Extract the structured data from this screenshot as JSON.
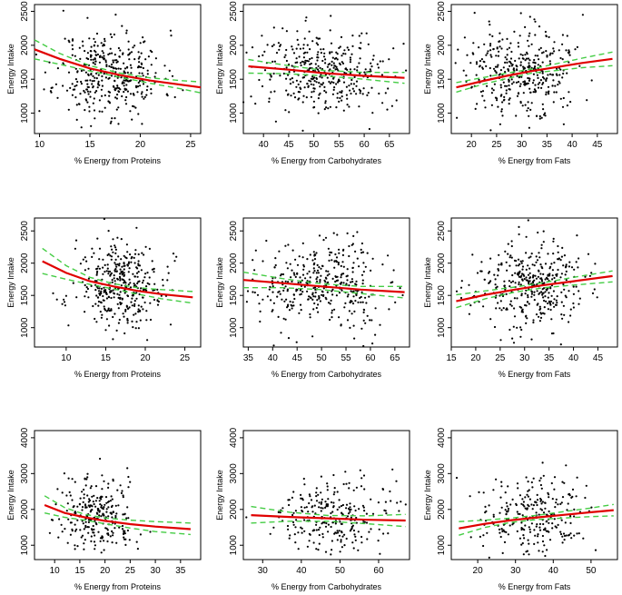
{
  "chart_data": [
    {
      "type": "scatter",
      "xlabel": "% Energy from Proteins",
      "ylabel": "Energy Intake",
      "xlim": [
        9.5,
        26
      ],
      "ylim": [
        700,
        2600
      ],
      "xticks": [
        10,
        15,
        20,
        25
      ],
      "yticks": [
        1000,
        1500,
        2000,
        2500
      ],
      "cloud": {
        "cx": 17,
        "sx": 2.6,
        "cy": 1580,
        "sy": 320,
        "n": 380,
        "seed": 11
      },
      "series": [
        {
          "type": "fit",
          "color": "#e00000",
          "x": [
            9.5,
            12,
            15,
            18,
            21,
            24,
            26
          ],
          "y": [
            1940,
            1800,
            1660,
            1560,
            1480,
            1420,
            1380
          ]
        },
        {
          "type": "ci",
          "color": "#44cc44",
          "x": [
            9.5,
            12,
            15,
            18,
            21,
            24,
            26
          ],
          "y": [
            2080,
            1880,
            1700,
            1590,
            1520,
            1480,
            1460
          ]
        },
        {
          "type": "ci",
          "color": "#44cc44",
          "x": [
            9.5,
            12,
            15,
            18,
            21,
            24,
            26
          ],
          "y": [
            1800,
            1720,
            1620,
            1530,
            1440,
            1360,
            1300
          ]
        }
      ]
    },
    {
      "type": "scatter",
      "xlabel": "% Energy from Carbohydrates",
      "ylabel": "Energy Intake",
      "xlim": [
        36,
        69
      ],
      "ylim": [
        700,
        2600
      ],
      "xticks": [
        40,
        45,
        50,
        55,
        60,
        65
      ],
      "yticks": [
        1000,
        1500,
        2000,
        2500
      ],
      "cloud": {
        "cx": 52,
        "sx": 6.5,
        "cy": 1580,
        "sy": 320,
        "n": 380,
        "seed": 12
      },
      "series": [
        {
          "type": "fit",
          "color": "#e00000",
          "x": [
            37,
            45,
            52,
            60,
            68
          ],
          "y": [
            1690,
            1640,
            1590,
            1550,
            1520
          ]
        },
        {
          "type": "ci",
          "color": "#44cc44",
          "x": [
            37,
            45,
            52,
            60,
            68
          ],
          "y": [
            1790,
            1700,
            1630,
            1600,
            1600
          ]
        },
        {
          "type": "ci",
          "color": "#44cc44",
          "x": [
            37,
            45,
            52,
            60,
            68
          ],
          "y": [
            1590,
            1580,
            1550,
            1500,
            1440
          ]
        }
      ]
    },
    {
      "type": "scatter",
      "xlabel": "% Energy from Fats",
      "ylabel": "Energy Intake",
      "xlim": [
        16,
        49
      ],
      "ylim": [
        700,
        2600
      ],
      "xticks": [
        20,
        25,
        30,
        35,
        40,
        45
      ],
      "yticks": [
        1000,
        1500,
        2000,
        2500
      ],
      "cloud": {
        "cx": 30,
        "sx": 5.5,
        "cy": 1600,
        "sy": 320,
        "n": 380,
        "seed": 13
      },
      "series": [
        {
          "type": "fit",
          "color": "#e00000",
          "x": [
            17,
            22,
            27,
            32,
            37,
            42,
            48
          ],
          "y": [
            1380,
            1470,
            1550,
            1620,
            1680,
            1740,
            1800
          ]
        },
        {
          "type": "ci",
          "color": "#44cc44",
          "x": [
            17,
            22,
            27,
            32,
            37,
            42,
            48
          ],
          "y": [
            1450,
            1520,
            1590,
            1650,
            1730,
            1810,
            1900
          ]
        },
        {
          "type": "ci",
          "color": "#44cc44",
          "x": [
            17,
            22,
            27,
            32,
            37,
            42,
            48
          ],
          "y": [
            1310,
            1420,
            1510,
            1590,
            1630,
            1670,
            1700
          ]
        }
      ]
    },
    {
      "type": "scatter",
      "xlabel": "% Energy from Proteins",
      "ylabel": "Energy Intake",
      "xlim": [
        6,
        27
      ],
      "ylim": [
        700,
        2700
      ],
      "xticks": [
        10,
        15,
        20,
        25
      ],
      "yticks": [
        1000,
        1500,
        2000,
        2500
      ],
      "cloud": {
        "cx": 17,
        "sx": 2.8,
        "cy": 1650,
        "sy": 330,
        "n": 380,
        "seed": 21
      },
      "series": [
        {
          "type": "fit",
          "color": "#e00000",
          "x": [
            7,
            10,
            13,
            16,
            19,
            22,
            26
          ],
          "y": [
            2030,
            1850,
            1720,
            1640,
            1570,
            1520,
            1470
          ]
        },
        {
          "type": "ci",
          "color": "#44cc44",
          "x": [
            7,
            10,
            13,
            16,
            19,
            22,
            26
          ],
          "y": [
            2230,
            1960,
            1780,
            1680,
            1620,
            1590,
            1560
          ]
        },
        {
          "type": "ci",
          "color": "#44cc44",
          "x": [
            7,
            10,
            13,
            16,
            19,
            22,
            26
          ],
          "y": [
            1840,
            1750,
            1670,
            1600,
            1520,
            1450,
            1380
          ]
        }
      ]
    },
    {
      "type": "scatter",
      "xlabel": "% Energy from Carbohydrates",
      "ylabel": "Energy Intake",
      "xlim": [
        34,
        68
      ],
      "ylim": [
        700,
        2700
      ],
      "xticks": [
        35,
        40,
        45,
        50,
        55,
        60,
        65
      ],
      "yticks": [
        1000,
        1500,
        2000,
        2500
      ],
      "cloud": {
        "cx": 50,
        "sx": 6.5,
        "cy": 1650,
        "sy": 330,
        "n": 380,
        "seed": 22
      },
      "series": [
        {
          "type": "fit",
          "color": "#e00000",
          "x": [
            34,
            42,
            50,
            58,
            67
          ],
          "y": [
            1740,
            1690,
            1640,
            1590,
            1550
          ]
        },
        {
          "type": "ci",
          "color": "#44cc44",
          "x": [
            34,
            42,
            50,
            58,
            67
          ],
          "y": [
            1860,
            1760,
            1680,
            1640,
            1640
          ]
        },
        {
          "type": "ci",
          "color": "#44cc44",
          "x": [
            34,
            42,
            50,
            58,
            67
          ],
          "y": [
            1620,
            1620,
            1590,
            1530,
            1460
          ]
        }
      ]
    },
    {
      "type": "scatter",
      "xlabel": "% Energy from Fats",
      "ylabel": "Energy Intake",
      "xlim": [
        15,
        49
      ],
      "ylim": [
        700,
        2700
      ],
      "xticks": [
        15,
        20,
        25,
        30,
        35,
        40,
        45
      ],
      "yticks": [
        1000,
        1500,
        2000,
        2500
      ],
      "cloud": {
        "cx": 31,
        "sx": 5.5,
        "cy": 1650,
        "sy": 330,
        "n": 380,
        "seed": 23
      },
      "series": [
        {
          "type": "fit",
          "color": "#e00000",
          "x": [
            16,
            22,
            28,
            34,
            40,
            48
          ],
          "y": [
            1410,
            1510,
            1590,
            1660,
            1720,
            1800
          ]
        },
        {
          "type": "ci",
          "color": "#44cc44",
          "x": [
            16,
            22,
            28,
            34,
            40,
            48
          ],
          "y": [
            1510,
            1570,
            1630,
            1700,
            1780,
            1880
          ]
        },
        {
          "type": "ci",
          "color": "#44cc44",
          "x": [
            16,
            22,
            28,
            34,
            40,
            48
          ],
          "y": [
            1310,
            1450,
            1550,
            1620,
            1660,
            1710
          ]
        }
      ]
    },
    {
      "type": "scatter",
      "xlabel": "% Energy from Proteins",
      "ylabel": "Energy Intake",
      "xlim": [
        6,
        39
      ],
      "ylim": [
        600,
        4200
      ],
      "xticks": [
        10,
        15,
        20,
        25,
        30,
        35
      ],
      "yticks": [
        1000,
        2000,
        3000,
        4000
      ],
      "cloud": {
        "cx": 18,
        "sx": 4,
        "cy": 1800,
        "sy": 550,
        "n": 260,
        "seed": 31
      },
      "series": [
        {
          "type": "fit",
          "color": "#e00000",
          "x": [
            8,
            12,
            16,
            20,
            25,
            30,
            37
          ],
          "y": [
            2120,
            1900,
            1780,
            1680,
            1590,
            1520,
            1450
          ]
        },
        {
          "type": "ci",
          "color": "#44cc44",
          "x": [
            8,
            12,
            16,
            20,
            25,
            30,
            37
          ],
          "y": [
            2380,
            2050,
            1860,
            1760,
            1700,
            1660,
            1620
          ]
        },
        {
          "type": "ci",
          "color": "#44cc44",
          "x": [
            8,
            12,
            16,
            20,
            25,
            30,
            37
          ],
          "y": [
            1900,
            1780,
            1700,
            1600,
            1480,
            1380,
            1300
          ]
        }
      ]
    },
    {
      "type": "scatter",
      "xlabel": "% Energy from Carbohydrates",
      "ylabel": "Energy Intake",
      "xlim": [
        25,
        68
      ],
      "ylim": [
        600,
        4200
      ],
      "xticks": [
        30,
        40,
        50,
        60
      ],
      "yticks": [
        1000,
        2000,
        3000,
        4000
      ],
      "cloud": {
        "cx": 47,
        "sx": 8,
        "cy": 1800,
        "sy": 550,
        "n": 260,
        "seed": 32
      },
      "series": [
        {
          "type": "fit",
          "color": "#e00000",
          "x": [
            27,
            37,
            47,
            57,
            67
          ],
          "y": [
            1840,
            1790,
            1750,
            1710,
            1690
          ]
        },
        {
          "type": "ci",
          "color": "#44cc44",
          "x": [
            27,
            37,
            47,
            57,
            67
          ],
          "y": [
            2080,
            1920,
            1830,
            1820,
            1860
          ]
        },
        {
          "type": "ci",
          "color": "#44cc44",
          "x": [
            27,
            37,
            47,
            57,
            67
          ],
          "y": [
            1620,
            1670,
            1670,
            1600,
            1520
          ]
        }
      ]
    },
    {
      "type": "scatter",
      "xlabel": "% Energy from Fats",
      "ylabel": "Energy Intake",
      "xlim": [
        13,
        57
      ],
      "ylim": [
        600,
        4200
      ],
      "xticks": [
        20,
        30,
        40,
        50
      ],
      "yticks": [
        1000,
        2000,
        3000,
        4000
      ],
      "cloud": {
        "cx": 35,
        "sx": 7,
        "cy": 1800,
        "sy": 550,
        "n": 260,
        "seed": 33
      },
      "series": [
        {
          "type": "fit",
          "color": "#e00000",
          "x": [
            15,
            22,
            29,
            36,
            43,
            50,
            56
          ],
          "y": [
            1470,
            1600,
            1700,
            1780,
            1850,
            1920,
            1980
          ]
        },
        {
          "type": "ci",
          "color": "#44cc44",
          "x": [
            15,
            22,
            29,
            36,
            43,
            50,
            56
          ],
          "y": [
            1660,
            1700,
            1760,
            1840,
            1940,
            2040,
            2140
          ]
        },
        {
          "type": "ci",
          "color": "#44cc44",
          "x": [
            15,
            22,
            29,
            36,
            43,
            50,
            56
          ],
          "y": [
            1280,
            1500,
            1640,
            1720,
            1760,
            1800,
            1820
          ]
        }
      ]
    }
  ]
}
